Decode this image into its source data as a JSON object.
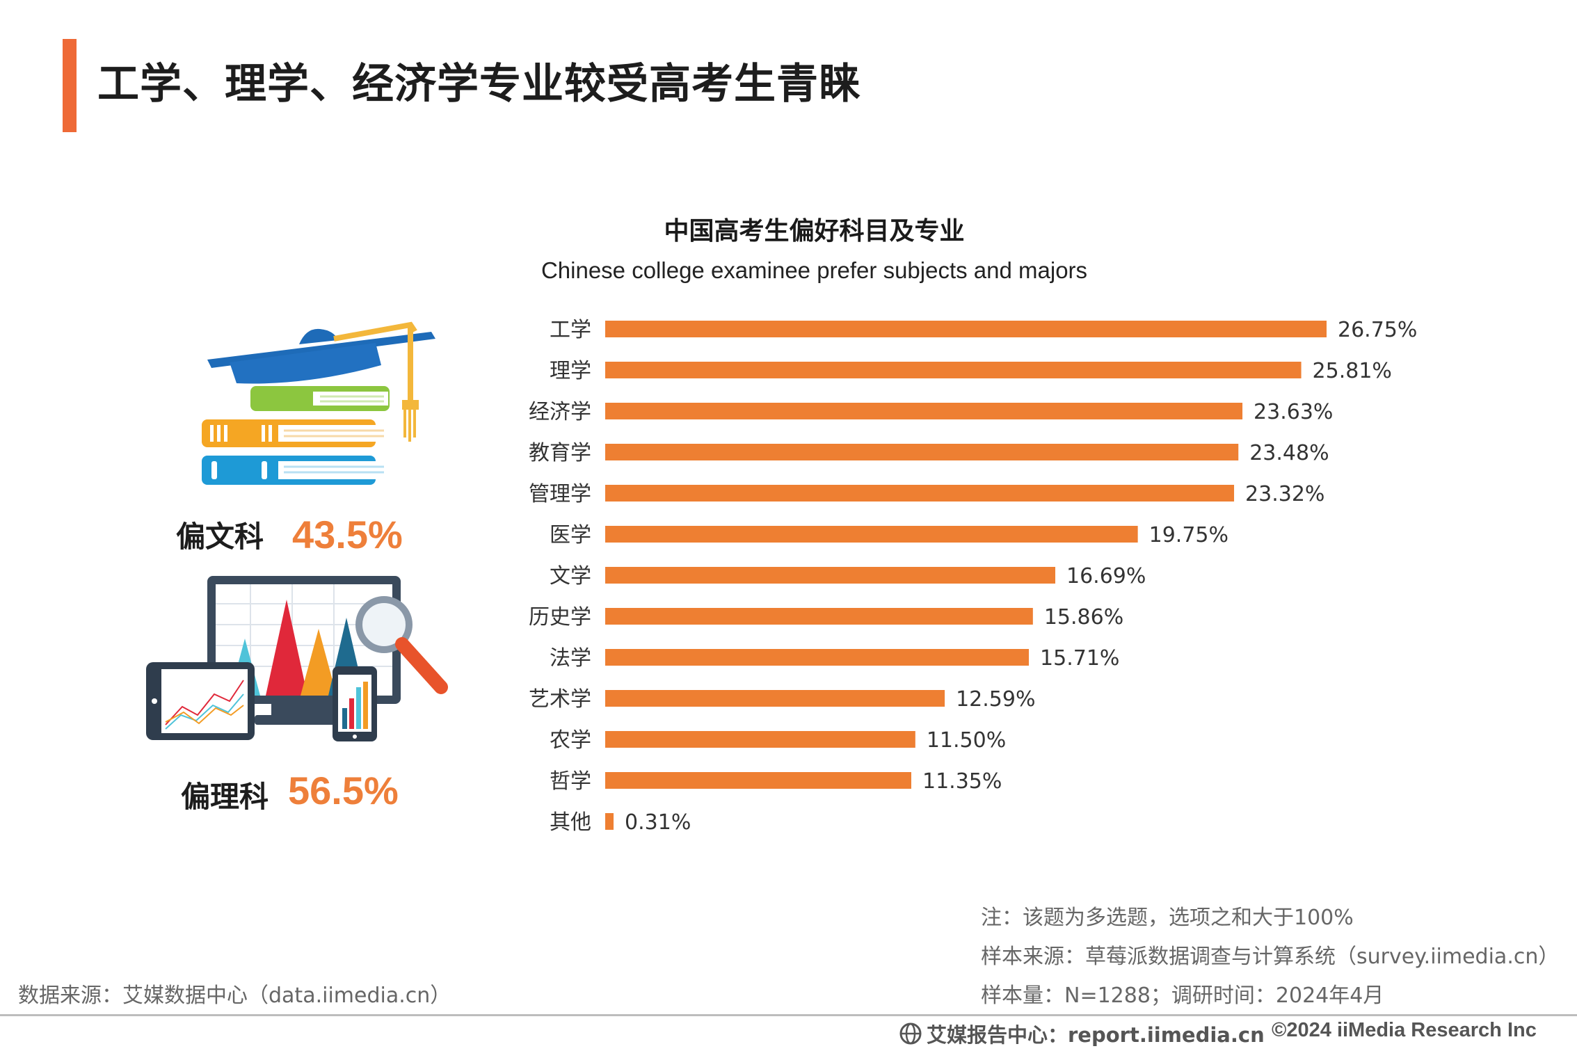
{
  "page_title": "工学、理学、经济学专业较受高考生青睐",
  "stats": {
    "liberal_label": "偏文科",
    "liberal_value": "43.5%",
    "science_label": "偏理科",
    "science_value": "56.5%"
  },
  "chart_data": {
    "type": "bar",
    "orientation": "horizontal",
    "title": "中国高考生偏好科目及专业",
    "subtitle": "Chinese college examinee prefer subjects and majors",
    "categories": [
      "工学",
      "理学",
      "经济学",
      "教育学",
      "管理学",
      "医学",
      "文学",
      "历史学",
      "法学",
      "艺术学",
      "农学",
      "哲学",
      "其他"
    ],
    "values": [
      26.75,
      25.81,
      23.63,
      23.48,
      23.32,
      19.75,
      16.69,
      15.86,
      15.71,
      12.59,
      11.5,
      11.35,
      0.31
    ],
    "value_labels": [
      "26.75%",
      "25.81%",
      "23.63%",
      "23.48%",
      "23.32%",
      "19.75%",
      "16.69%",
      "15.86%",
      "15.71%",
      "12.59%",
      "11.50%",
      "11.35%",
      "0.31%"
    ],
    "xlim": [
      0,
      26.75
    ],
    "bar_color": "#ee7f32",
    "grid": false,
    "legend": "none"
  },
  "notes": {
    "note": "注：该题为多选题，选项之和大于100%",
    "sample_source": "样本来源：草莓派数据调查与计算系统（survey.iimedia.cn）",
    "sample_size": "样本量：N=1288；调研时间：2024年4月"
  },
  "data_source": "数据来源：艾媒数据中心（data.iimedia.cn）",
  "footer": {
    "report_center": "艾媒报告中心：report.iimedia.cn",
    "copyright": "©2024  iiMedia Research  Inc"
  },
  "colors": {
    "accent_bar": "#ee6a37",
    "bar": "#ee7f32",
    "stat_value": "#ee7f3a"
  },
  "icons": [
    "books-graduation-cap-icon",
    "analytics-devices-icon",
    "globe-icon"
  ]
}
